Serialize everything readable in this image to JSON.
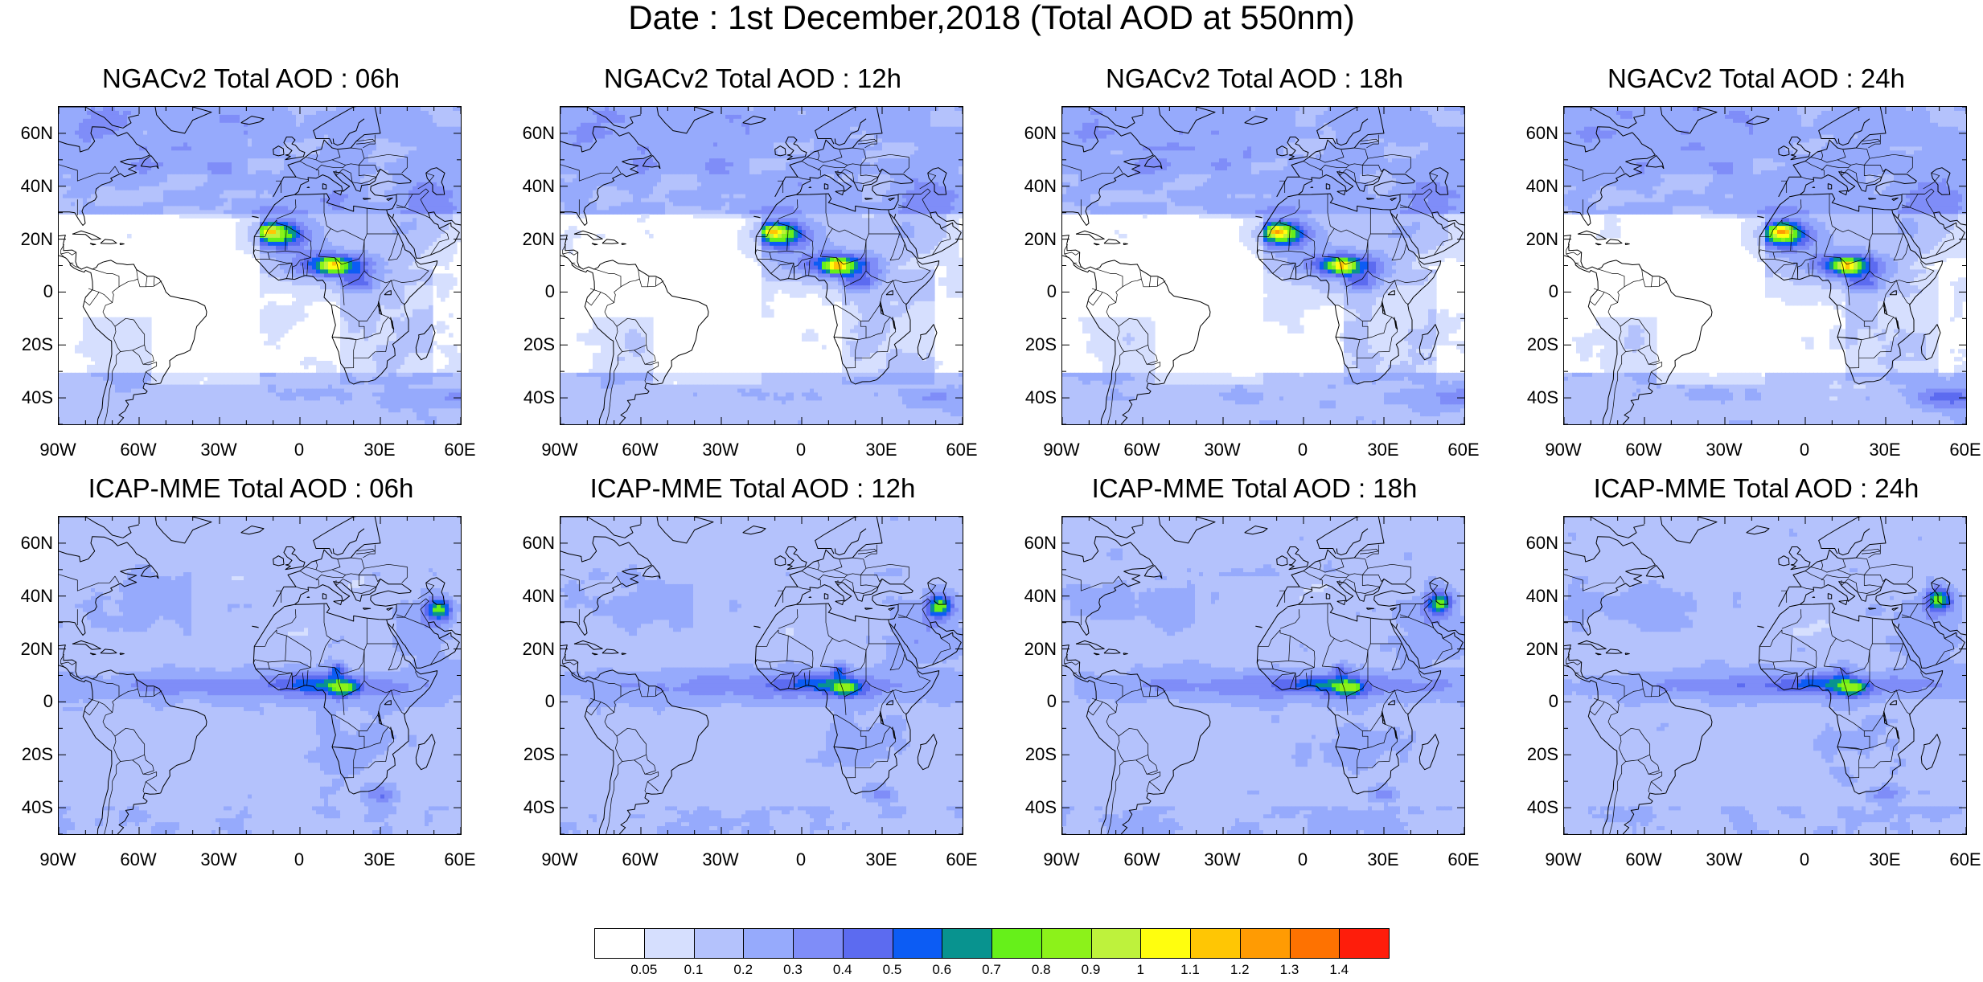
{
  "title": "Date : 1st December,2018 (Total AOD at 550nm)",
  "panels": [
    {
      "title": "NGACv2 Total AOD : 06h",
      "model": "ngac",
      "idx": 0
    },
    {
      "title": "NGACv2 Total AOD : 12h",
      "model": "ngac",
      "idx": 1
    },
    {
      "title": "NGACv2 Total AOD : 18h",
      "model": "ngac",
      "idx": 2
    },
    {
      "title": "NGACv2 Total AOD : 24h",
      "model": "ngac",
      "idx": 3
    },
    {
      "title": "ICAP-MME Total AOD : 06h",
      "model": "icap",
      "idx": 0
    },
    {
      "title": "ICAP-MME Total AOD : 12h",
      "model": "icap",
      "idx": 1
    },
    {
      "title": "ICAP-MME Total AOD : 18h",
      "model": "icap",
      "idx": 2
    },
    {
      "title": "ICAP-MME Total AOD : 24h",
      "model": "icap",
      "idx": 3
    }
  ],
  "lat_ticks": [
    "60N",
    "40N",
    "20N",
    "0",
    "20S",
    "40S"
  ],
  "lat_values": [
    60,
    40,
    20,
    0,
    -20,
    -40
  ],
  "lon_ticks": [
    "90W",
    "60W",
    "30W",
    "0",
    "30E",
    "60E"
  ],
  "lon_values": [
    -90,
    -60,
    -30,
    0,
    30,
    60
  ],
  "lat_range": [
    -50,
    70
  ],
  "lon_range": [
    -90,
    60
  ],
  "colorbar": {
    "labels": [
      "0.05",
      "0.1",
      "0.2",
      "0.3",
      "0.4",
      "0.5",
      "0.6",
      "0.7",
      "0.8",
      "0.9",
      "1",
      "1.1",
      "1.2",
      "1.3",
      "1.4"
    ],
    "colors": [
      "#ffffff",
      "#d6dffe",
      "#b4c2fc",
      "#96aafc",
      "#7f8df8",
      "#5c6bf0",
      "#0c5cf4",
      "#08938f",
      "#66f01a",
      "#8cf21a",
      "#bef23c",
      "#fffe0e",
      "#ffc604",
      "#ff9b03",
      "#fe7201",
      "#fe1d0b"
    ]
  }
}
